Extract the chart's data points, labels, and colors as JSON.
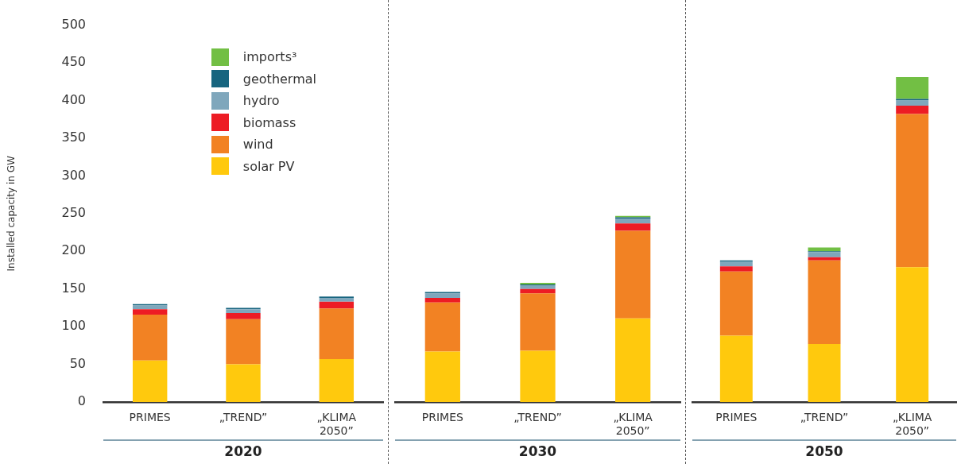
{
  "chart_data": [
    {
      "type": "bar",
      "xlabel": "2020",
      "ylabel": "Installed capacity in GW",
      "categories": [
        "PRIMES",
        "„TREND”",
        "„KLIMA 2050”"
      ],
      "stacked": true,
      "ylim": [
        0,
        500
      ],
      "yticks": [
        0,
        50,
        100,
        150,
        200,
        250,
        300,
        350,
        400,
        450,
        500
      ],
      "legend": "top right",
      "series": [
        {
          "name": "solar PV",
          "color": "#ffc90d",
          "values": [
            55,
            50,
            57
          ]
        },
        {
          "name": "wind",
          "color": "#f28223",
          "values": [
            61,
            60,
            67
          ]
        },
        {
          "name": "biomass",
          "color": "#ed1c24",
          "values": [
            7,
            8,
            9
          ]
        },
        {
          "name": "hydro",
          "color": "#7fa7bc",
          "values": [
            5,
            5,
            5
          ]
        },
        {
          "name": "geothermal",
          "color": "#17657f",
          "values": [
            2,
            2,
            2
          ]
        },
        {
          "name": "imports³",
          "color": "#72bf44",
          "values": [
            0,
            0,
            0
          ]
        }
      ]
    },
    {
      "type": "bar",
      "xlabel": "2030",
      "categories": [
        "PRIMES",
        "„TREND”",
        "„KLIMA 2050”"
      ],
      "stacked": true,
      "ylim": [
        0,
        500
      ],
      "yticks": [
        0,
        50,
        100,
        150,
        200,
        250,
        300,
        350,
        400,
        450,
        500
      ],
      "tick_labels": "x",
      "series": [
        {
          "color": "#ffc90d",
          "values": [
            67,
            68,
            111
          ]
        },
        {
          "color": "#f28223",
          "values": [
            65,
            76,
            116
          ]
        },
        {
          "color": "#ed1c24",
          "values": [
            6,
            6,
            10
          ]
        },
        {
          "color": "#7fa7bc",
          "values": [
            6,
            5,
            6
          ]
        },
        {
          "color": "#17657f",
          "values": [
            2,
            1,
            2
          ]
        },
        {
          "color": "#72bf44",
          "values": [
            0,
            2,
            2
          ]
        }
      ]
    },
    {
      "type": "bar",
      "xlabel": "2050",
      "categories": [
        "PRIMES",
        "„TREND”",
        "„KLIMA 2050”"
      ],
      "stacked": true,
      "ylim": [
        0,
        500
      ],
      "yticks": [
        0,
        50,
        100,
        150,
        200,
        250,
        300,
        350,
        400,
        450,
        500
      ],
      "tick_labels": "x",
      "series": [
        {
          "color": "#ffc90d",
          "values": [
            88,
            77,
            179
          ]
        },
        {
          "color": "#f28223",
          "values": [
            85,
            111,
            203
          ]
        },
        {
          "color": "#ed1c24",
          "values": [
            7,
            4,
            11
          ]
        },
        {
          "color": "#7fa7bc",
          "values": [
            6,
            7,
            7
          ]
        },
        {
          "color": "#17657f",
          "values": [
            2,
            1,
            2
          ]
        },
        {
          "color": "#72bf44",
          "values": [
            0,
            5,
            29
          ]
        }
      ]
    }
  ]
}
